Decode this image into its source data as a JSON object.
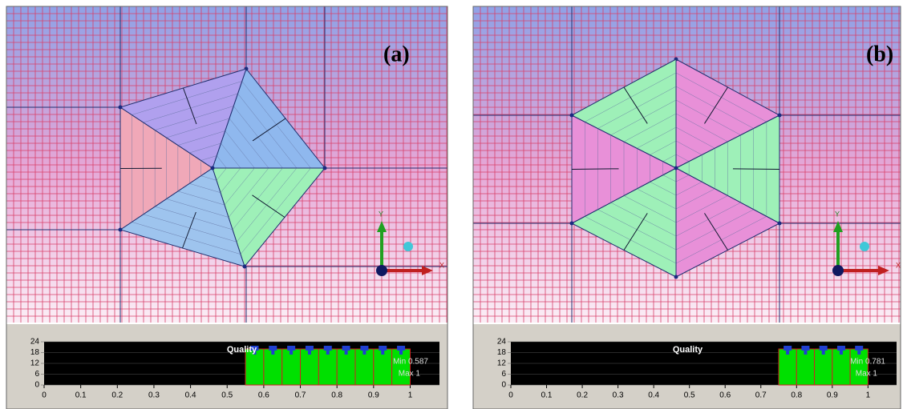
{
  "panels": [
    {
      "label": "(a)",
      "axis_x": "X",
      "axis_y": "Y",
      "histogram": {
        "title": "Quality",
        "min_label": "Min 0.587",
        "max_label": "Max 1",
        "xlim": [
          0,
          1.08
        ],
        "xticks": [
          0,
          0.1,
          0.2,
          0.3,
          0.4,
          0.5,
          0.6,
          0.7,
          0.8,
          0.9,
          1
        ],
        "ylim": [
          0,
          24
        ],
        "yticks": [
          0,
          6,
          12,
          18,
          24
        ],
        "bins": [
          0.55,
          0.6,
          0.65,
          0.7,
          0.75,
          0.8,
          0.85,
          0.9,
          0.95,
          1
        ],
        "counts": [
          20,
          20,
          20,
          20,
          20,
          20,
          20,
          20,
          20
        ]
      }
    },
    {
      "label": "(b)",
      "axis_x": "X",
      "axis_y": "Y",
      "histogram": {
        "title": "Quality",
        "min_label": "Min 0.781",
        "max_label": "Max 1",
        "xlim": [
          0,
          1.08
        ],
        "xticks": [
          0,
          0.1,
          0.2,
          0.3,
          0.4,
          0.5,
          0.6,
          0.7,
          0.8,
          0.9,
          1
        ],
        "ylim": [
          0,
          24
        ],
        "yticks": [
          0,
          6,
          12,
          18,
          24
        ],
        "bins": [
          0.75,
          0.8,
          0.85,
          0.9,
          0.95,
          1
        ],
        "counts": [
          20,
          20,
          20,
          20,
          20
        ]
      }
    }
  ]
}
